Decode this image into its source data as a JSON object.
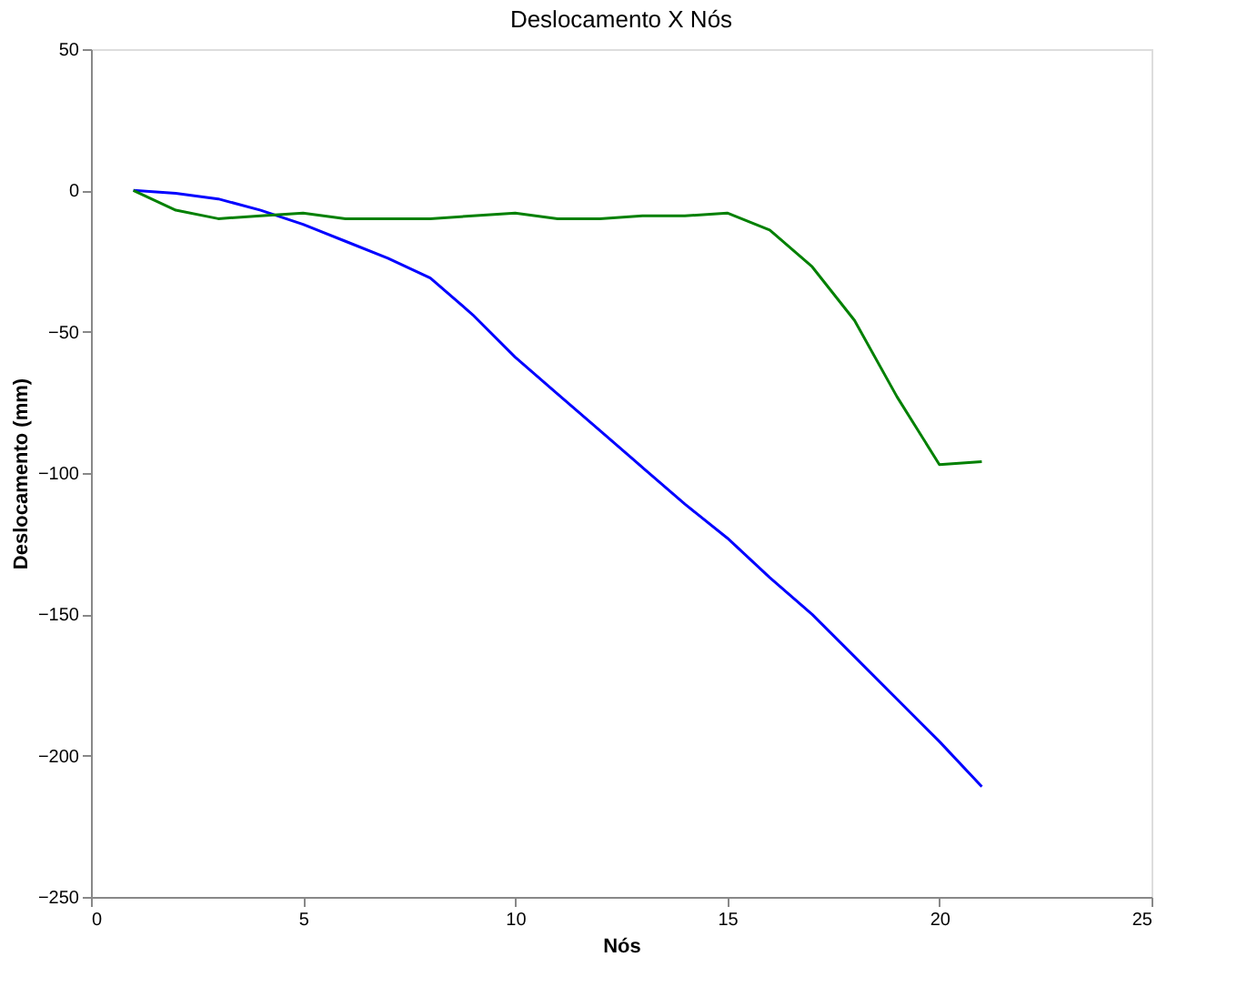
{
  "chart_data": {
    "type": "line",
    "title": "Deslocamento X Nós",
    "xlabel": "Nós",
    "ylabel": "Deslocamento (mm)",
    "x": [
      1,
      2,
      3,
      4,
      5,
      6,
      7,
      8,
      9,
      10,
      11,
      12,
      13,
      14,
      15,
      16,
      17,
      18,
      19,
      20,
      21
    ],
    "series": [
      {
        "color": "#0000ff",
        "values": [
          0,
          -1,
          -3,
          -7,
          -12,
          -18,
          -24,
          -31,
          -44,
          -59,
          -72,
          -85,
          -98,
          -111,
          -123,
          -137,
          -150,
          -165,
          -180,
          -195,
          -211
        ]
      },
      {
        "color": "#008000",
        "values": [
          0,
          -7,
          -10,
          -9,
          -8,
          -10,
          -10,
          -10,
          -9,
          -8,
          -10,
          -10,
          -9,
          -9,
          -8,
          -14,
          -27,
          -46,
          -73,
          -97,
          -96
        ]
      }
    ],
    "xlim": [
      0,
      25
    ],
    "xticks": [
      0,
      5,
      10,
      15,
      20,
      25
    ],
    "ylim": [
      -250,
      50
    ],
    "yticks": [
      -250,
      -200,
      -150,
      -100,
      -50,
      0,
      50
    ],
    "grid": false,
    "legend": false,
    "marker": "none",
    "line_style": "solid"
  }
}
